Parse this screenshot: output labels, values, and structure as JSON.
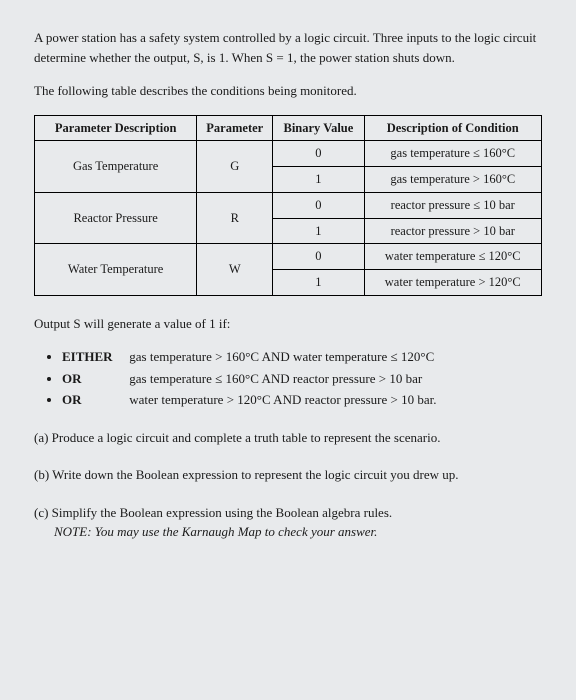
{
  "intro1": "A power station has a safety system controlled by a logic circuit. Three inputs to the logic circuit determine whether the output, S, is 1. When S = 1, the power station shuts down.",
  "intro2": "The following table describes the conditions being monitored.",
  "table": {
    "headers": [
      "Parameter Description",
      "Parameter",
      "Binary Value",
      "Description of Condition"
    ],
    "rows": [
      {
        "desc": "Gas Temperature",
        "param": "G",
        "vals": [
          {
            "bin": "0",
            "cond": "gas temperature ≤ 160°C"
          },
          {
            "bin": "1",
            "cond": "gas temperature > 160°C"
          }
        ]
      },
      {
        "desc": "Reactor Pressure",
        "param": "R",
        "vals": [
          {
            "bin": "0",
            "cond": "reactor pressure ≤ 10 bar"
          },
          {
            "bin": "1",
            "cond": "reactor pressure > 10 bar"
          }
        ]
      },
      {
        "desc": "Water Temperature",
        "param": "W",
        "vals": [
          {
            "bin": "0",
            "cond": "water temperature ≤ 120°C"
          },
          {
            "bin": "1",
            "cond": "water temperature > 120°C"
          }
        ]
      }
    ]
  },
  "output_intro": "Output S will generate a value of 1 if:",
  "conditions": [
    {
      "kw": "EITHER",
      "text": "gas temperature > 160°C AND water temperature ≤ 120°C"
    },
    {
      "kw": "OR",
      "text": "gas temperature ≤ 160°C AND reactor pressure > 10 bar"
    },
    {
      "kw": "OR",
      "text": "water temperature > 120°C AND reactor pressure > 10 bar."
    }
  ],
  "qa": "(a) Produce a logic circuit and complete a truth table to represent the scenario.",
  "qb": "(b) Write down the Boolean expression to represent the logic circuit you drew up.",
  "qc": "(c) Simplify the Boolean expression using the Boolean algebra rules.",
  "qc_note": "NOTE: You may use the Karnaugh Map to check your answer."
}
